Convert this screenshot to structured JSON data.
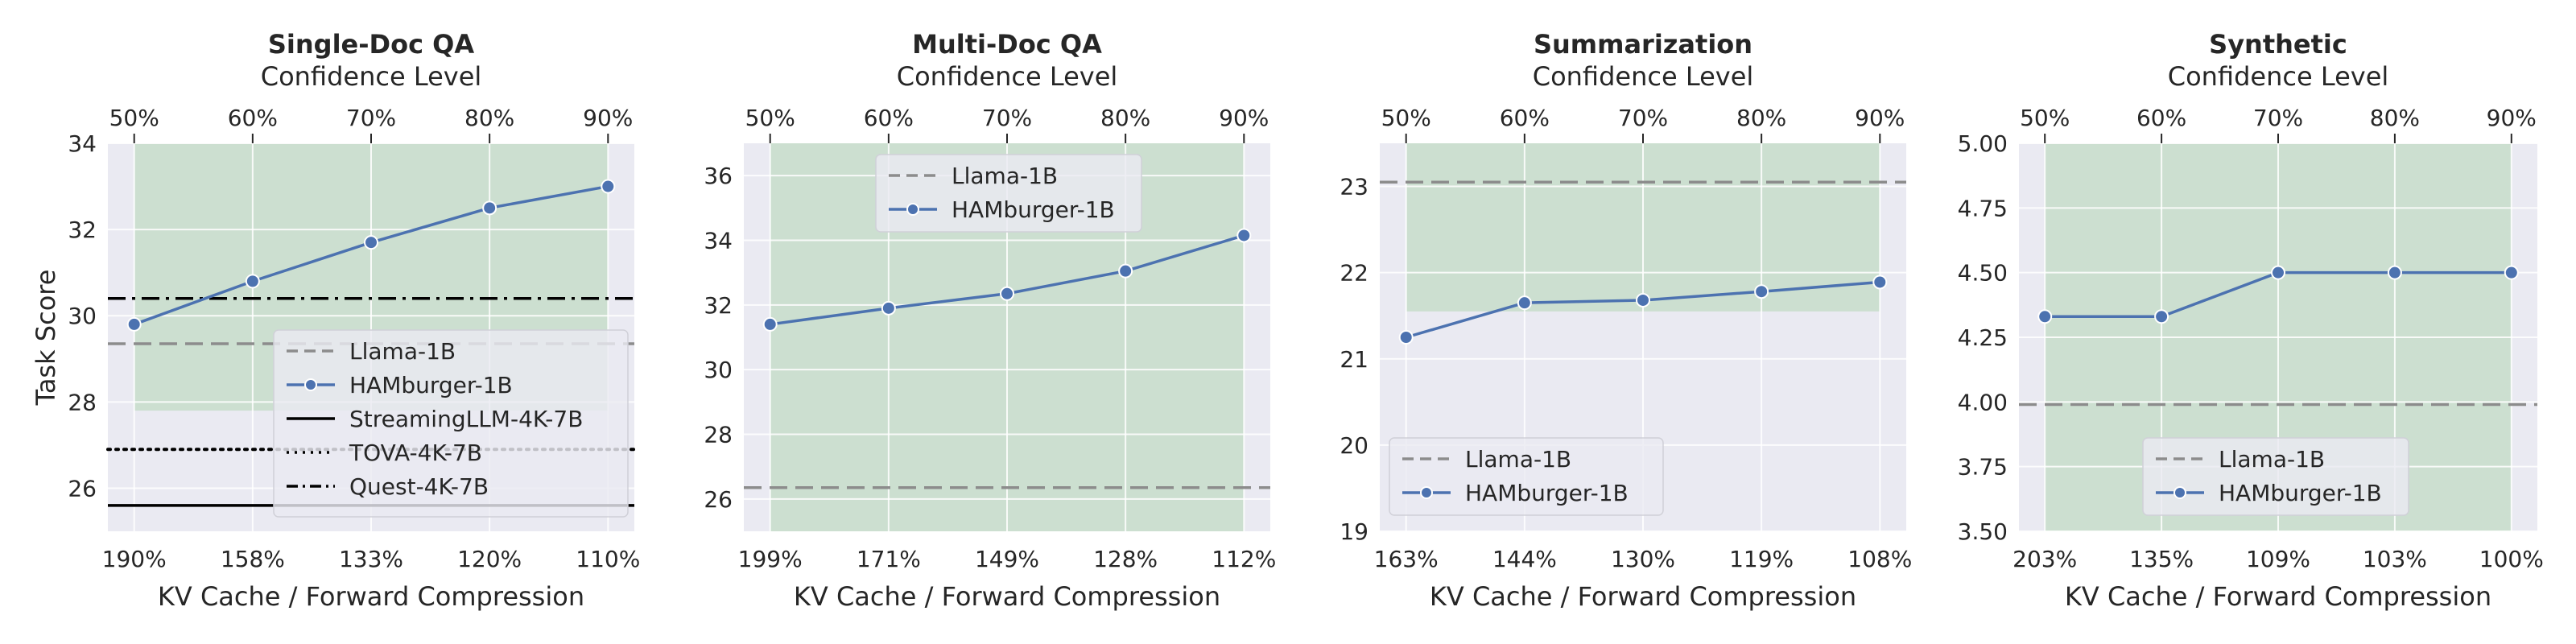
{
  "chart_data": [
    {
      "type": "line",
      "title": "Single-Doc QA",
      "xlabel": "KV Cache / Forward Compression",
      "x2label": "Confidence Level",
      "ylabel": "Task Score",
      "categories": [
        "190%",
        "158%",
        "133%",
        "120%",
        "110%"
      ],
      "top_categories": [
        "50%",
        "60%",
        "70%",
        "80%",
        "90%"
      ],
      "ylim": [
        25,
        34
      ],
      "yticks": [
        "26",
        "28",
        "30",
        "32",
        "34"
      ],
      "shade": [
        27.8,
        34
      ],
      "series": [
        {
          "name": "HAMburger-1B",
          "values": [
            29.8,
            30.8,
            31.7,
            32.5,
            33.0
          ]
        }
      ],
      "hlines": [
        {
          "name": "Llama-1B",
          "value": 29.35,
          "style": "dashed",
          "color": "#8c8c8c"
        },
        {
          "name": "StreamingLLM-4K-7B",
          "value": 25.6,
          "style": "solid",
          "color": "#000000"
        },
        {
          "name": "TOVA-4K-7B",
          "value": 26.9,
          "style": "dotted",
          "color": "#000000"
        },
        {
          "name": "Quest-4K-7B",
          "value": 30.4,
          "style": "dashdot",
          "color": "#000000"
        }
      ],
      "grid": true,
      "legend": "lower-right"
    },
    {
      "type": "line",
      "title": "Multi-Doc QA",
      "xlabel": "KV Cache / Forward Compression",
      "x2label": "Confidence Level",
      "ylabel": "",
      "categories": [
        "199%",
        "171%",
        "149%",
        "128%",
        "112%"
      ],
      "top_categories": [
        "50%",
        "60%",
        "70%",
        "80%",
        "90%"
      ],
      "ylim": [
        25,
        37
      ],
      "yticks": [
        "26",
        "28",
        "30",
        "32",
        "34",
        "36"
      ],
      "shade": [
        25,
        37
      ],
      "series": [
        {
          "name": "HAMburger-1B",
          "values": [
            31.4,
            31.9,
            32.35,
            33.05,
            34.15
          ]
        }
      ],
      "hlines": [
        {
          "name": "Llama-1B",
          "value": 26.35,
          "style": "dashed",
          "color": "#8c8c8c"
        }
      ],
      "grid": true,
      "legend": "upper-center"
    },
    {
      "type": "line",
      "title": "Summarization",
      "xlabel": "KV Cache / Forward Compression",
      "x2label": "Confidence Level",
      "ylabel": "",
      "categories": [
        "163%",
        "144%",
        "130%",
        "119%",
        "108%"
      ],
      "top_categories": [
        "50%",
        "60%",
        "70%",
        "80%",
        "90%"
      ],
      "ylim": [
        19,
        23.5
      ],
      "yticks": [
        "19",
        "20",
        "21",
        "22",
        "23"
      ],
      "shade": [
        21.55,
        23.5
      ],
      "series": [
        {
          "name": "HAMburger-1B",
          "values": [
            21.25,
            21.65,
            21.68,
            21.78,
            21.89
          ]
        }
      ],
      "hlines": [
        {
          "name": "Llama-1B",
          "value": 23.05,
          "style": "dashed",
          "color": "#8c8c8c"
        }
      ],
      "grid": true,
      "legend": "lower-left"
    },
    {
      "type": "line",
      "title": "Synthetic",
      "xlabel": "KV Cache / Forward Compression",
      "x2label": "Confidence Level",
      "ylabel": "",
      "categories": [
        "203%",
        "135%",
        "109%",
        "103%",
        "100%"
      ],
      "top_categories": [
        "50%",
        "60%",
        "70%",
        "80%",
        "90%"
      ],
      "ylim": [
        3.5,
        5.0
      ],
      "yticks": [
        "3.50",
        "3.75",
        "4.00",
        "4.25",
        "4.50",
        "4.75",
        "5.00"
      ],
      "shade": [
        3.5,
        5.0
      ],
      "series": [
        {
          "name": "HAMburger-1B",
          "values": [
            4.33,
            4.33,
            4.5,
            4.5,
            4.5
          ]
        }
      ],
      "hlines": [
        {
          "name": "Llama-1B",
          "value": 3.99,
          "style": "dashed",
          "color": "#8c8c8c"
        }
      ],
      "grid": true,
      "legend": "lower-center"
    }
  ],
  "colors": {
    "axes_bg": "#eaeaf2",
    "shade": "#ccdfd0",
    "grid": "#ffffff",
    "series": "#4c72b0"
  }
}
